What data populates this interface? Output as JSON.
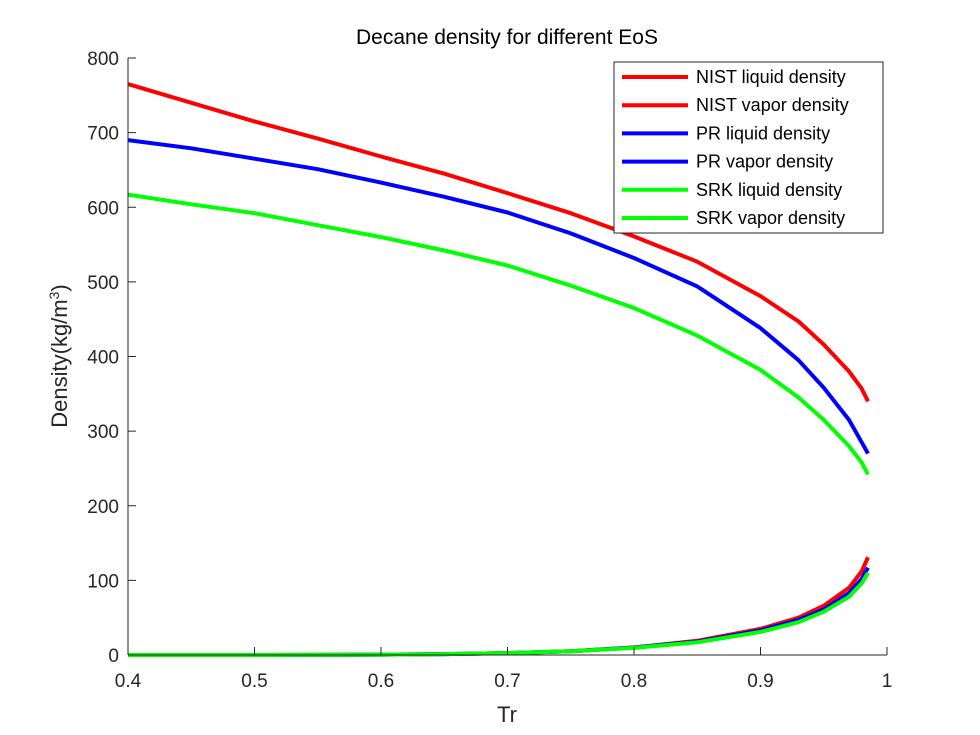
{
  "chart_data": {
    "type": "line",
    "title": "Decane density for different EoS",
    "xlabel": "Tr",
    "ylabel": {
      "text": "Density(kg/m",
      "superscript": "3",
      "suffix": ")"
    },
    "xlim": [
      0.4,
      1
    ],
    "ylim": [
      0,
      800
    ],
    "x_ticks": [
      "0.4",
      "0.5",
      "0.6",
      "0.7",
      "0.8",
      "0.9",
      "1"
    ],
    "y_ticks": [
      "0",
      "100",
      "200",
      "300",
      "400",
      "500",
      "600",
      "700",
      "800"
    ],
    "grid": false,
    "legend_position": "top-right",
    "x": [
      0.4,
      0.45,
      0.5,
      0.55,
      0.6,
      0.65,
      0.7,
      0.75,
      0.8,
      0.85,
      0.9,
      0.93,
      0.95,
      0.97,
      0.98,
      0.985
    ],
    "series": [
      {
        "name": "NIST liquid density",
        "color": "#ff0000",
        "values": [
          765,
          740,
          715,
          692,
          668,
          645,
          619,
          592,
          561,
          527,
          481,
          447,
          416,
          380,
          357,
          340
        ]
      },
      {
        "name": "NIST vapor density",
        "color": "#ff0000",
        "values": [
          0,
          0,
          0,
          0.2,
          0.5,
          1.2,
          2.5,
          5,
          10,
          19,
          35,
          50,
          66,
          90,
          112,
          131
        ]
      },
      {
        "name": "PR liquid density",
        "color": "#0000ff",
        "values": [
          690,
          679,
          665,
          651,
          633,
          614,
          593,
          565,
          532,
          494,
          438,
          395,
          358,
          315,
          285,
          270
        ]
      },
      {
        "name": "PR vapor density",
        "color": "#0000ff",
        "values": [
          0,
          0,
          0,
          0.2,
          0.5,
          1.2,
          2.5,
          5,
          10,
          18,
          33,
          47,
          61,
          83,
          102,
          117
        ]
      },
      {
        "name": "SRK liquid density",
        "color": "#00ff00",
        "values": [
          617,
          604,
          592,
          576,
          560,
          542,
          522,
          495,
          465,
          428,
          382,
          345,
          315,
          280,
          258,
          242
        ]
      },
      {
        "name": "SRK vapor density",
        "color": "#00ff00",
        "values": [
          0,
          0,
          0,
          0.2,
          0.5,
          1.2,
          2.5,
          5,
          9.5,
          17,
          31,
          44,
          58,
          78,
          96,
          110
        ]
      }
    ]
  }
}
